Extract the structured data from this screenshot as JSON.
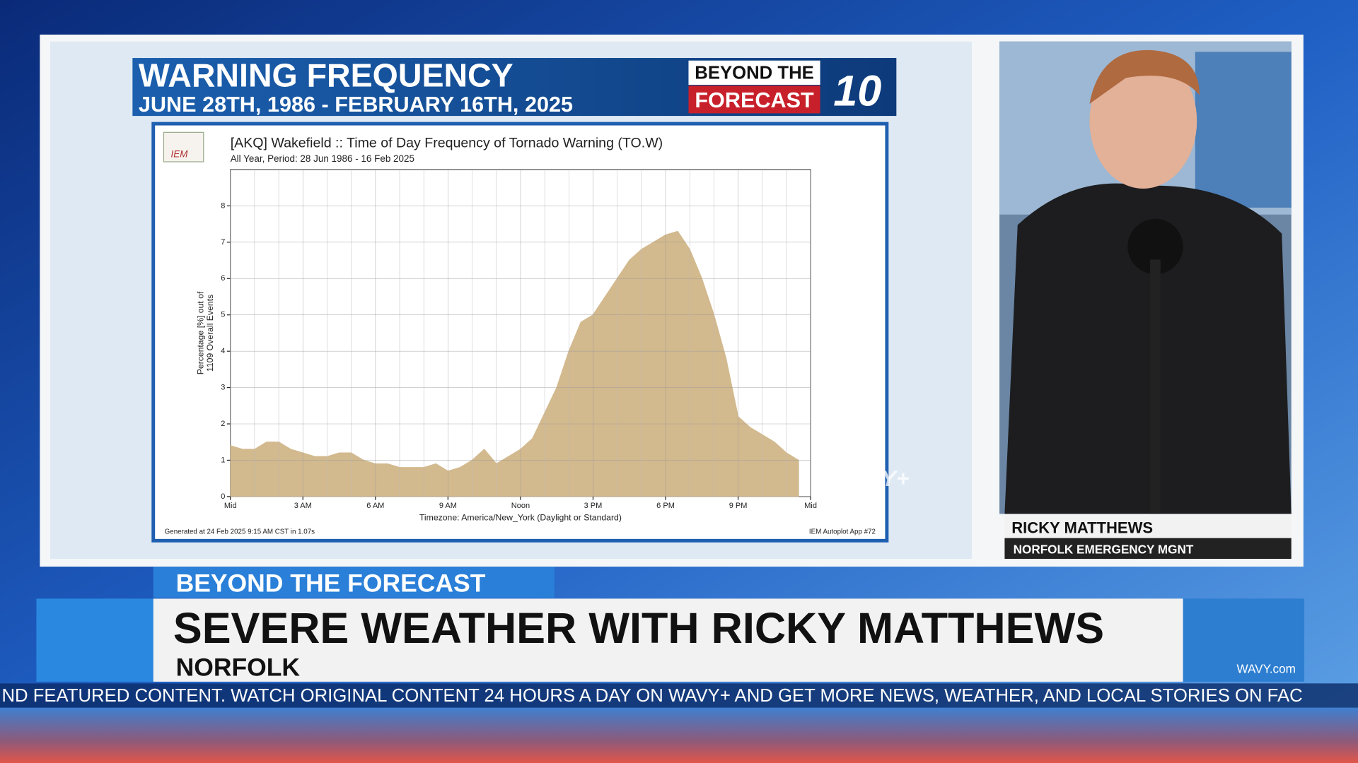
{
  "header": {
    "title": "WARNING FREQUENCY",
    "subtitle": "JUNE 28TH, 1986 - FEBRUARY 16TH, 2025",
    "brand_top": "BEYOND THE",
    "brand_bottom": "FORECAST",
    "brand_logo": "10"
  },
  "chart_data": {
    "type": "area",
    "title": "[AKQ] Wakefield :: Time of Day Frequency of Tornado Warning (TO.W)",
    "subtitle": "All Year, Period: 28 Jun 1986 - 16 Feb 2025",
    "logo": "IEM",
    "ylabel": [
      "Percentage [%] out of",
      "1109 Overall Events"
    ],
    "xlabel": "Timezone: America/New_York (Daylight or Standard)",
    "footer_left": "Generated at 24 Feb 2025 9:15 AM CST in 1.07s",
    "footer_right": "IEM Autoplot App #72",
    "color": "#d2b98e",
    "grid": true,
    "x": [
      0,
      0.5,
      1,
      1.5,
      2,
      2.5,
      3,
      3.5,
      4,
      4.5,
      5,
      5.5,
      6,
      6.5,
      7,
      7.5,
      8,
      8.5,
      9,
      9.5,
      10,
      10.5,
      11,
      11.5,
      12,
      12.5,
      13,
      13.5,
      14,
      14.5,
      15,
      15.5,
      16,
      16.5,
      17,
      17.5,
      18,
      18.5,
      19,
      19.5,
      20,
      20.5,
      21,
      21.5,
      22,
      22.5,
      23,
      23.5
    ],
    "values": [
      1.4,
      1.3,
      1.3,
      1.5,
      1.5,
      1.3,
      1.2,
      1.1,
      1.1,
      1.2,
      1.2,
      1.0,
      0.9,
      0.9,
      0.8,
      0.8,
      0.8,
      0.9,
      0.7,
      0.8,
      1.0,
      1.3,
      0.9,
      1.1,
      1.3,
      1.6,
      2.3,
      3.0,
      4.0,
      4.8,
      5.0,
      5.5,
      6.0,
      6.5,
      6.8,
      7.0,
      7.2,
      7.3,
      6.8,
      6.0,
      5.0,
      3.8,
      2.2,
      1.9,
      1.7,
      1.5,
      1.2,
      1.0
    ],
    "xlim": [
      0,
      24
    ],
    "ylim": [
      0,
      9
    ],
    "yticks": [
      0,
      1,
      2,
      3,
      4,
      5,
      6,
      7,
      8
    ],
    "xticks": [
      {
        "value": 0,
        "label": "Mid"
      },
      {
        "value": 3,
        "label": "3 AM"
      },
      {
        "value": 6,
        "label": "6 AM"
      },
      {
        "value": 9,
        "label": "9 AM"
      },
      {
        "value": 12,
        "label": "Noon"
      },
      {
        "value": 15,
        "label": "3 PM"
      },
      {
        "value": 18,
        "label": "6 PM"
      },
      {
        "value": 21,
        "label": "9 PM"
      },
      {
        "value": 24,
        "label": "Mid"
      }
    ]
  },
  "watermark": "WAVY+",
  "guest": {
    "name": "RICKY MATTHEWS",
    "title": "NORFOLK EMERGENCY MGNT"
  },
  "lower_third": {
    "tag": "BEYOND THE FORECAST",
    "headline": "SEVERE WEATHER WITH RICKY MATTHEWS",
    "location": "NORFOLK",
    "station": "WAVY.com"
  },
  "ticker": "ND FEATURED CONTENT. WATCH ORIGINAL CONTENT 24 HOURS A DAY ON WAVY+ AND GET MORE NEWS, WEATHER, AND LOCAL STORIES ON FAC"
}
